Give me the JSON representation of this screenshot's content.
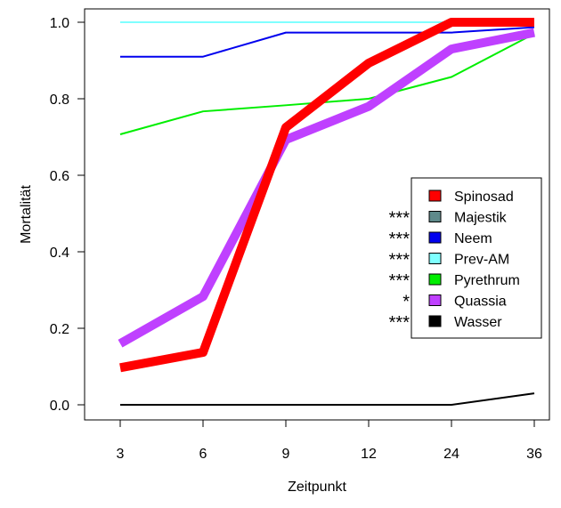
{
  "chart_data": {
    "type": "line",
    "title": "",
    "xlabel": "Zeitpunkt",
    "ylabel": "Mortalität",
    "categories": [
      "3",
      "6",
      "9",
      "12",
      "24",
      "36"
    ],
    "y_ticks": [
      "0.0",
      "0.2",
      "0.4",
      "0.6",
      "0.8",
      "1.0"
    ],
    "ylim": [
      0,
      1
    ],
    "grid": false,
    "legend_position": "right",
    "series": [
      {
        "name": "Spinosad",
        "color": "#ff0000",
        "weight": "thick",
        "stars": "",
        "values": [
          0.097,
          0.137,
          0.725,
          0.893,
          1.0,
          1.0
        ]
      },
      {
        "name": "Majestik",
        "color": "#5f8a8b",
        "weight": "thin",
        "dashed": true,
        "stars": "***",
        "values": [
          1.0,
          1.0,
          1.0,
          1.0,
          1.0,
          1.0
        ]
      },
      {
        "name": "Neem",
        "color": "#0000ee",
        "weight": "thin",
        "stars": "***",
        "values": [
          0.91,
          0.91,
          0.973,
          0.973,
          0.973,
          0.987
        ]
      },
      {
        "name": "Prev-AM",
        "color": "#7fffff",
        "weight": "thin",
        "stars": "***",
        "values": [
          1.0,
          1.0,
          1.0,
          1.0,
          1.0,
          1.0
        ]
      },
      {
        "name": "Pyrethrum",
        "color": "#00ee00",
        "weight": "thin",
        "stars": "***",
        "values": [
          0.707,
          0.767,
          0.783,
          0.8,
          0.857,
          0.97
        ]
      },
      {
        "name": "Quassia",
        "color": "#bf40ff",
        "weight": "thick",
        "stars": "*",
        "values": [
          0.16,
          0.283,
          0.693,
          0.78,
          0.93,
          0.973
        ]
      },
      {
        "name": "Wasser",
        "color": "#000000",
        "weight": "thin",
        "stars": "***",
        "values": [
          0.0,
          0.0,
          0.0,
          0.0,
          0.0,
          0.03
        ]
      }
    ]
  }
}
